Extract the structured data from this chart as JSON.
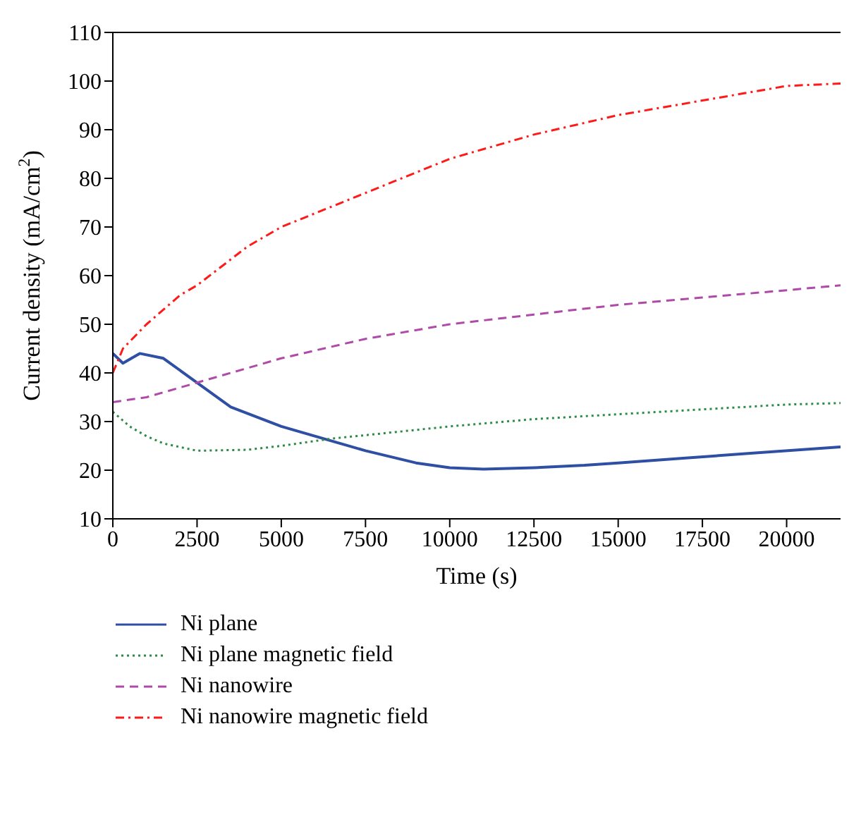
{
  "chart_data": {
    "type": "line",
    "xlabel": "Time (s)",
    "ylabel": "Current density (mA/cm$^{2}$)",
    "xlim": [
      0,
      21600
    ],
    "xticks": [
      0,
      2500,
      5000,
      7500,
      10000,
      12500,
      15000,
      17500,
      20000
    ],
    "ylim": [
      10,
      110
    ],
    "yticks": [
      10,
      20,
      30,
      40,
      50,
      60,
      70,
      80,
      90,
      100,
      110
    ],
    "grid": false,
    "legend": "bottom",
    "marker": "none",
    "series": [
      {
        "name": "Ni plane",
        "color": "#2e4fa3",
        "line_style": "solid",
        "x": [
          0,
          300,
          800,
          1500,
          2500,
          3500,
          5000,
          6500,
          7500,
          9000,
          10000,
          11000,
          12500,
          14000,
          15000,
          17000,
          19000,
          21600
        ],
        "values": [
          44,
          42,
          44,
          43,
          38,
          33,
          29,
          26,
          24,
          21.5,
          20.5,
          20.2,
          20.5,
          21,
          21.5,
          22.5,
          23.5,
          24.8
        ]
      },
      {
        "name": "Ni plane magnetic field",
        "color": "#2e8b47",
        "line_style": "dotted",
        "x": [
          0,
          500,
          1000,
          1500,
          2500,
          4000,
          5000,
          6500,
          7500,
          10000,
          12500,
          15000,
          17500,
          20000,
          21600
        ],
        "values": [
          32,
          29,
          27,
          25.5,
          24,
          24.2,
          25,
          26.5,
          27.2,
          29,
          30.5,
          31.5,
          32.5,
          33.5,
          33.8
        ]
      },
      {
        "name": "Ni nanowire",
        "color": "#b04aa8",
        "line_style": "dashed",
        "x": [
          0,
          1000,
          2500,
          4000,
          5000,
          7500,
          10000,
          12500,
          15000,
          17500,
          20000,
          21600
        ],
        "values": [
          34,
          35,
          38,
          41,
          43,
          47,
          50,
          52,
          54,
          55.5,
          57,
          58
        ]
      },
      {
        "name": "Ni nanowire magnetic field",
        "color": "#ff1a1a",
        "line_style": "dashdot",
        "x": [
          0,
          300,
          1000,
          2000,
          2500,
          4000,
          5000,
          7500,
          10000,
          12500,
          15000,
          17500,
          20000,
          21600
        ],
        "values": [
          40,
          45,
          50,
          56,
          58,
          66,
          70,
          77,
          84,
          89,
          93,
          96,
          99,
          99.5
        ]
      }
    ]
  }
}
